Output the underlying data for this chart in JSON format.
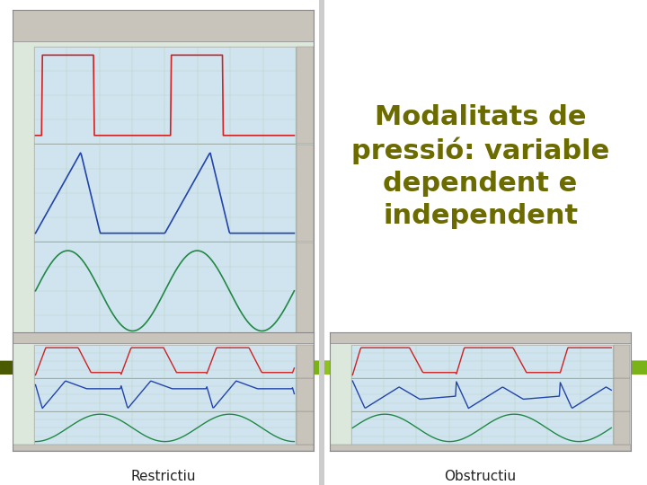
{
  "background_color": "#ffffff",
  "title_text": "Modalitats de\npressió: variable\ndependent e\nindependent",
  "title_color": "#6b6b00",
  "label_restrictiu": "Restrictiu",
  "label_obstructiu": "Obstructiu",
  "label_fontsize": 11,
  "title_fontsize": 22,
  "divider_green_left": "#7ab317",
  "divider_green_right": "#8ec020",
  "divider_dark": "#4a5a00",
  "separator_color": "#aaaaaa",
  "chart_bg": "#dde8dd",
  "chart_inner_bg": "#d0e4f0",
  "toolbar_color": "#c8c4bc",
  "red_line": "#cc2222",
  "blue_line": "#2244aa",
  "green_line": "#228844"
}
